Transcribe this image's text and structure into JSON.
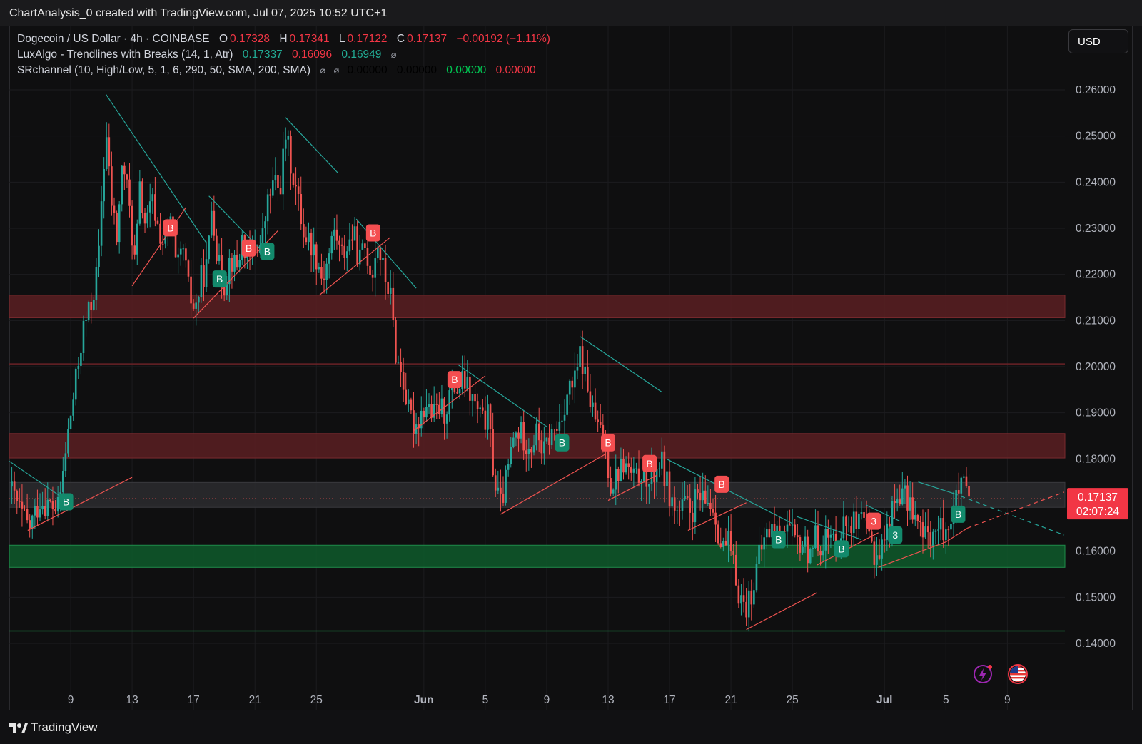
{
  "header": {
    "title": "ChartAnalysis_0 created with TradingView.com, Jul 07, 2025 10:52 UTC+1"
  },
  "legend": {
    "symbol": "Dogecoin / US Dollar · 4h · COINBASE",
    "o_key": "O",
    "o_val": "0.17328",
    "h_key": "H",
    "h_val": "0.17341",
    "l_key": "L",
    "l_val": "0.17122",
    "c_key": "C",
    "c_val": "0.17137",
    "change": "−0.00192 (−1.11%)",
    "indicator1_name": "LuxAlgo - Trendlines with Breaks (14, 1, Atr)",
    "indicator1_v1": "0.17337",
    "indicator1_v2": "0.16096",
    "indicator1_v3": "0.16949",
    "indicator2_name": "SRchannel (10, High/Low, 5, 1, 6, 290, 50, SMA, 200, SMA)",
    "indicator2_v1": "0.00000",
    "indicator2_v2": "0.00000",
    "indicator2_v3": "0.00000",
    "indicator2_v4": "0.00000",
    "eye_symbol": "⌀"
  },
  "currency": "USD",
  "price_label": {
    "price": "0.17137",
    "countdown": "02:07:24"
  },
  "footer": {
    "brand": "TradingView"
  },
  "colors": {
    "up": "#26a69a",
    "down": "#ef5350",
    "resistance_zone": "#5a1f22",
    "support_zone": "#0e5a2c",
    "neutral_zone": "#2a2a2e",
    "trend_down": "#26a69a",
    "trend_up": "#ef5350"
  },
  "chart_data": {
    "type": "candlestick",
    "timeframe": "4h",
    "ylim": [
      0.134,
      0.264
    ],
    "y_ticks": [
      "0.14000",
      "0.15000",
      "0.16000",
      "0.17000",
      "0.18000",
      "0.19000",
      "0.20000",
      "0.21000",
      "0.22000",
      "0.23000",
      "0.24000",
      "0.25000",
      "0.26000"
    ],
    "hidden_y_ticks": [
      "0.17000"
    ],
    "x_ticks": [
      {
        "label": "9",
        "day": 9,
        "bold": false
      },
      {
        "label": "13",
        "day": 13,
        "bold": false
      },
      {
        "label": "17",
        "day": 17,
        "bold": false
      },
      {
        "label": "21",
        "day": 21,
        "bold": false
      },
      {
        "label": "25",
        "day": 25,
        "bold": false
      },
      {
        "label": "Jun",
        "day": 32,
        "bold": true
      },
      {
        "label": "5",
        "day": 36,
        "bold": false
      },
      {
        "label": "9",
        "day": 40,
        "bold": false
      },
      {
        "label": "13",
        "day": 44,
        "bold": false
      },
      {
        "label": "17",
        "day": 48,
        "bold": false
      },
      {
        "label": "21",
        "day": 52,
        "bold": false
      },
      {
        "label": "25",
        "day": 56,
        "bold": false
      },
      {
        "label": "Jul",
        "day": 62,
        "bold": true
      },
      {
        "label": "5",
        "day": 66,
        "bold": false
      },
      {
        "label": "9",
        "day": 70,
        "bold": false
      }
    ],
    "x_domain_days": [
      5.0,
      73.75
    ],
    "close_path": [
      [
        5.0,
        0.174
      ],
      [
        5.8,
        0.168
      ],
      [
        6.3,
        0.165
      ],
      [
        7.0,
        0.171
      ],
      [
        7.6,
        0.17
      ],
      [
        8.2,
        0.169
      ],
      [
        8.8,
        0.185
      ],
      [
        9.3,
        0.196
      ],
      [
        9.8,
        0.208
      ],
      [
        10.3,
        0.213
      ],
      [
        10.8,
        0.222
      ],
      [
        11.0,
        0.236
      ],
      [
        11.3,
        0.251
      ],
      [
        11.6,
        0.237
      ],
      [
        12.0,
        0.228
      ],
      [
        12.4,
        0.245
      ],
      [
        12.8,
        0.235
      ],
      [
        13.2,
        0.222
      ],
      [
        13.5,
        0.238
      ],
      [
        13.9,
        0.23
      ],
      [
        14.3,
        0.236
      ],
      [
        14.7,
        0.23
      ],
      [
        15.1,
        0.226
      ],
      [
        15.5,
        0.232
      ],
      [
        15.9,
        0.22
      ],
      [
        16.3,
        0.226
      ],
      [
        16.7,
        0.216
      ],
      [
        17.1,
        0.212
      ],
      [
        17.5,
        0.219
      ],
      [
        17.9,
        0.222
      ],
      [
        18.2,
        0.236
      ],
      [
        18.6,
        0.222
      ],
      [
        19.0,
        0.218
      ],
      [
        19.4,
        0.224
      ],
      [
        19.8,
        0.221
      ],
      [
        20.2,
        0.228
      ],
      [
        20.6,
        0.222
      ],
      [
        21.0,
        0.227
      ],
      [
        21.4,
        0.226
      ],
      [
        21.8,
        0.235
      ],
      [
        22.2,
        0.24
      ],
      [
        22.6,
        0.238
      ],
      [
        23.0,
        0.25
      ],
      [
        23.4,
        0.243
      ],
      [
        23.8,
        0.236
      ],
      [
        24.2,
        0.229
      ],
      [
        24.6,
        0.227
      ],
      [
        25.0,
        0.224
      ],
      [
        25.4,
        0.219
      ],
      [
        25.8,
        0.224
      ],
      [
        26.2,
        0.23
      ],
      [
        26.6,
        0.224
      ],
      [
        27.0,
        0.226
      ],
      [
        27.4,
        0.229
      ],
      [
        27.8,
        0.223
      ],
      [
        28.2,
        0.226
      ],
      [
        28.6,
        0.22
      ],
      [
        29.0,
        0.227
      ],
      [
        29.4,
        0.22
      ],
      [
        29.8,
        0.216
      ],
      [
        30.2,
        0.202
      ],
      [
        30.6,
        0.198
      ],
      [
        31.0,
        0.19
      ],
      [
        31.4,
        0.187
      ],
      [
        31.8,
        0.19
      ],
      [
        32.2,
        0.192
      ],
      [
        32.6,
        0.189
      ],
      [
        33.0,
        0.191
      ],
      [
        33.4,
        0.19
      ],
      [
        33.8,
        0.196
      ],
      [
        34.2,
        0.195
      ],
      [
        34.6,
        0.197
      ],
      [
        35.0,
        0.194
      ],
      [
        35.4,
        0.191
      ],
      [
        35.8,
        0.188
      ],
      [
        36.2,
        0.189
      ],
      [
        36.6,
        0.175
      ],
      [
        37.0,
        0.17
      ],
      [
        37.4,
        0.176
      ],
      [
        37.8,
        0.184
      ],
      [
        38.2,
        0.186
      ],
      [
        38.6,
        0.184
      ],
      [
        39.0,
        0.183
      ],
      [
        39.4,
        0.186
      ],
      [
        39.8,
        0.181
      ],
      [
        40.2,
        0.185
      ],
      [
        40.6,
        0.186
      ],
      [
        41.0,
        0.19
      ],
      [
        41.4,
        0.195
      ],
      [
        41.8,
        0.196
      ],
      [
        42.2,
        0.203
      ],
      [
        42.6,
        0.196
      ],
      [
        43.0,
        0.19
      ],
      [
        43.4,
        0.186
      ],
      [
        43.8,
        0.183
      ],
      [
        44.2,
        0.174
      ],
      [
        44.6,
        0.177
      ],
      [
        45.0,
        0.179
      ],
      [
        45.4,
        0.177
      ],
      [
        45.8,
        0.175
      ],
      [
        46.2,
        0.178
      ],
      [
        46.6,
        0.174
      ],
      [
        47.0,
        0.177
      ],
      [
        47.4,
        0.18
      ],
      [
        47.8,
        0.175
      ],
      [
        48.2,
        0.17
      ],
      [
        48.6,
        0.168
      ],
      [
        49.0,
        0.17
      ],
      [
        49.4,
        0.168
      ],
      [
        49.8,
        0.172
      ],
      [
        50.2,
        0.17
      ],
      [
        50.6,
        0.171
      ],
      [
        51.0,
        0.168
      ],
      [
        51.4,
        0.16
      ],
      [
        51.8,
        0.162
      ],
      [
        52.2,
        0.156
      ],
      [
        52.6,
        0.15
      ],
      [
        53.0,
        0.148
      ],
      [
        53.4,
        0.152
      ],
      [
        53.8,
        0.158
      ],
      [
        54.2,
        0.163
      ],
      [
        54.6,
        0.165
      ],
      [
        55.0,
        0.164
      ],
      [
        55.4,
        0.166
      ],
      [
        55.8,
        0.165
      ],
      [
        56.2,
        0.161
      ],
      [
        56.6,
        0.162
      ],
      [
        57.0,
        0.16
      ],
      [
        57.4,
        0.163
      ],
      [
        57.8,
        0.162
      ],
      [
        58.2,
        0.163
      ],
      [
        58.6,
        0.162
      ],
      [
        59.0,
        0.164
      ],
      [
        59.4,
        0.166
      ],
      [
        59.8,
        0.167
      ],
      [
        60.2,
        0.165
      ],
      [
        60.6,
        0.166
      ],
      [
        61.0,
        0.163
      ],
      [
        61.4,
        0.159
      ],
      [
        61.8,
        0.161
      ],
      [
        62.2,
        0.165
      ],
      [
        62.6,
        0.17
      ],
      [
        63.0,
        0.173
      ],
      [
        63.4,
        0.171
      ],
      [
        63.8,
        0.17
      ],
      [
        64.2,
        0.165
      ],
      [
        64.6,
        0.163
      ],
      [
        65.0,
        0.164
      ],
      [
        65.4,
        0.164
      ],
      [
        65.8,
        0.165
      ],
      [
        66.2,
        0.166
      ],
      [
        66.6,
        0.17
      ],
      [
        67.0,
        0.175
      ],
      [
        67.2,
        0.173
      ],
      [
        67.5,
        0.171
      ]
    ],
    "zones": [
      {
        "name": "resistance-zone-upper",
        "kind": "resistance",
        "ymin": 0.2106,
        "ymax": 0.2155
      },
      {
        "name": "resistance-line",
        "kind": "resistance-line",
        "y": 0.2006
      },
      {
        "name": "resistance-zone-lower",
        "kind": "resistance",
        "ymin": 0.1802,
        "ymax": 0.1855
      },
      {
        "name": "neutral-zone",
        "kind": "neutral",
        "ymin": 0.1695,
        "ymax": 0.1749
      },
      {
        "name": "support-zone",
        "kind": "support",
        "ymin": 0.1565,
        "ymax": 0.1613
      },
      {
        "name": "support-line",
        "kind": "support-line",
        "y": 0.1427
      }
    ],
    "trendlines": [
      {
        "kind": "down",
        "x1": 5.0,
        "y1": 0.1795,
        "x2": 8.5,
        "y2": 0.1715
      },
      {
        "kind": "down",
        "x1": 11.3,
        "y1": 0.259,
        "x2": 17.8,
        "y2": 0.227
      },
      {
        "kind": "down",
        "x1": 18.0,
        "y1": 0.237,
        "x2": 21.5,
        "y2": 0.225
      },
      {
        "kind": "down",
        "x1": 23.0,
        "y1": 0.254,
        "x2": 26.4,
        "y2": 0.242
      },
      {
        "kind": "down",
        "x1": 27.6,
        "y1": 0.232,
        "x2": 31.5,
        "y2": 0.217
      },
      {
        "kind": "down",
        "x1": 34.2,
        "y1": 0.2005,
        "x2": 40.0,
        "y2": 0.187
      },
      {
        "kind": "down",
        "x1": 42.2,
        "y1": 0.2065,
        "x2": 47.5,
        "y2": 0.1945
      },
      {
        "kind": "down",
        "x1": 47.8,
        "y1": 0.18,
        "x2": 56.0,
        "y2": 0.166
      },
      {
        "kind": "down",
        "x1": 56.3,
        "y1": 0.1675,
        "x2": 60.5,
        "y2": 0.1625
      },
      {
        "kind": "down",
        "x1": 60.8,
        "y1": 0.17,
        "x2": 63.0,
        "y2": 0.1665
      },
      {
        "kind": "down",
        "x1": 64.2,
        "y1": 0.175,
        "x2": 66.5,
        "y2": 0.1725
      },
      {
        "kind": "down-dashed",
        "x1": 66.5,
        "y1": 0.1725,
        "x2": 73.7,
        "y2": 0.1635
      },
      {
        "kind": "up",
        "x1": 6.2,
        "y1": 0.1645,
        "x2": 13.0,
        "y2": 0.176
      },
      {
        "kind": "up",
        "x1": 13.0,
        "y1": 0.2175,
        "x2": 16.5,
        "y2": 0.2345
      },
      {
        "kind": "up",
        "x1": 17.0,
        "y1": 0.2105,
        "x2": 22.5,
        "y2": 0.2295
      },
      {
        "kind": "up",
        "x1": 25.2,
        "y1": 0.2155,
        "x2": 29.8,
        "y2": 0.228
      },
      {
        "kind": "up",
        "x1": 31.3,
        "y1": 0.186,
        "x2": 36.0,
        "y2": 0.198
      },
      {
        "kind": "up",
        "x1": 37.0,
        "y1": 0.168,
        "x2": 43.8,
        "y2": 0.181
      },
      {
        "kind": "up",
        "x1": 44.0,
        "y1": 0.171,
        "x2": 47.2,
        "y2": 0.1765
      },
      {
        "kind": "up",
        "x1": 49.2,
        "y1": 0.1645,
        "x2": 53.0,
        "y2": 0.1705
      },
      {
        "kind": "up",
        "x1": 53.0,
        "y1": 0.143,
        "x2": 57.6,
        "y2": 0.151
      },
      {
        "kind": "up",
        "x1": 57.6,
        "y1": 0.157,
        "x2": 61.6,
        "y2": 0.164
      },
      {
        "kind": "up",
        "x1": 61.6,
        "y1": 0.1565,
        "x2": 66.0,
        "y2": 0.162
      },
      {
        "kind": "up",
        "x1": 66.0,
        "y1": 0.162,
        "x2": 67.4,
        "y2": 0.165
      },
      {
        "kind": "up-dashed",
        "x1": 67.4,
        "y1": 0.165,
        "x2": 73.7,
        "y2": 0.1728
      }
    ],
    "signals": [
      {
        "type": "buy",
        "label": "B",
        "day": 8.7,
        "y": 0.1707
      },
      {
        "type": "sell",
        "label": "B",
        "day": 15.5,
        "y": 0.2301
      },
      {
        "type": "buy",
        "label": "B",
        "day": 18.7,
        "y": 0.219
      },
      {
        "type": "sell",
        "label": "B",
        "day": 20.6,
        "y": 0.2257
      },
      {
        "type": "buy",
        "label": "B",
        "day": 21.8,
        "y": 0.225
      },
      {
        "type": "sell",
        "label": "B",
        "day": 28.7,
        "y": 0.229
      },
      {
        "type": "sell",
        "label": "B",
        "day": 34.0,
        "y": 0.1972
      },
      {
        "type": "buy",
        "label": "B",
        "day": 41.0,
        "y": 0.1835
      },
      {
        "type": "sell",
        "label": "B",
        "day": 44.0,
        "y": 0.1835
      },
      {
        "type": "sell",
        "label": "B",
        "day": 46.7,
        "y": 0.179
      },
      {
        "type": "sell",
        "label": "B",
        "day": 51.4,
        "y": 0.1745
      },
      {
        "type": "buy",
        "label": "B",
        "day": 55.1,
        "y": 0.1625
      },
      {
        "type": "buy",
        "label": "B",
        "day": 59.2,
        "y": 0.1605
      },
      {
        "type": "sell",
        "label": "3",
        "day": 61.3,
        "y": 0.1665
      },
      {
        "type": "buy",
        "label": "3",
        "day": 62.7,
        "y": 0.1635
      },
      {
        "type": "buy",
        "label": "B",
        "day": 66.8,
        "y": 0.168
      }
    ],
    "current_price": 0.17137
  }
}
